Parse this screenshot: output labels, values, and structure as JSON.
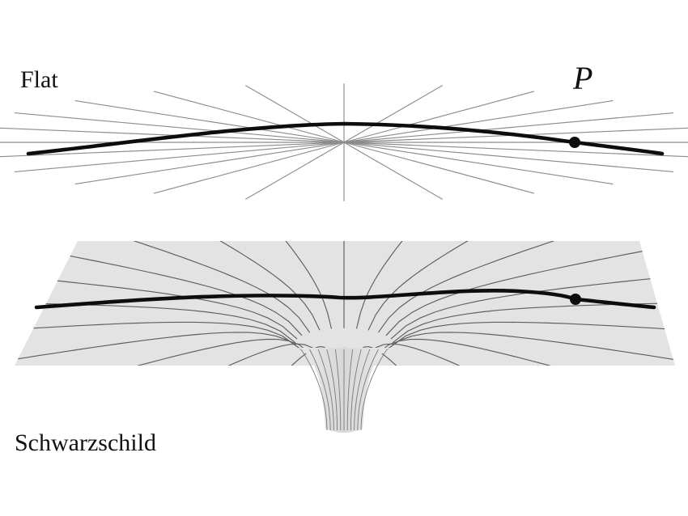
{
  "labels": {
    "flat": "Flat",
    "schwarzschild": "Schwarzschild",
    "point": "P"
  },
  "colors": {
    "background": "#ffffff",
    "sheet": "#e3e3e3",
    "grid_flat": "#8c8c8c",
    "grid_curved": "#5e5e5e",
    "curve": "#0d0d0d"
  }
}
